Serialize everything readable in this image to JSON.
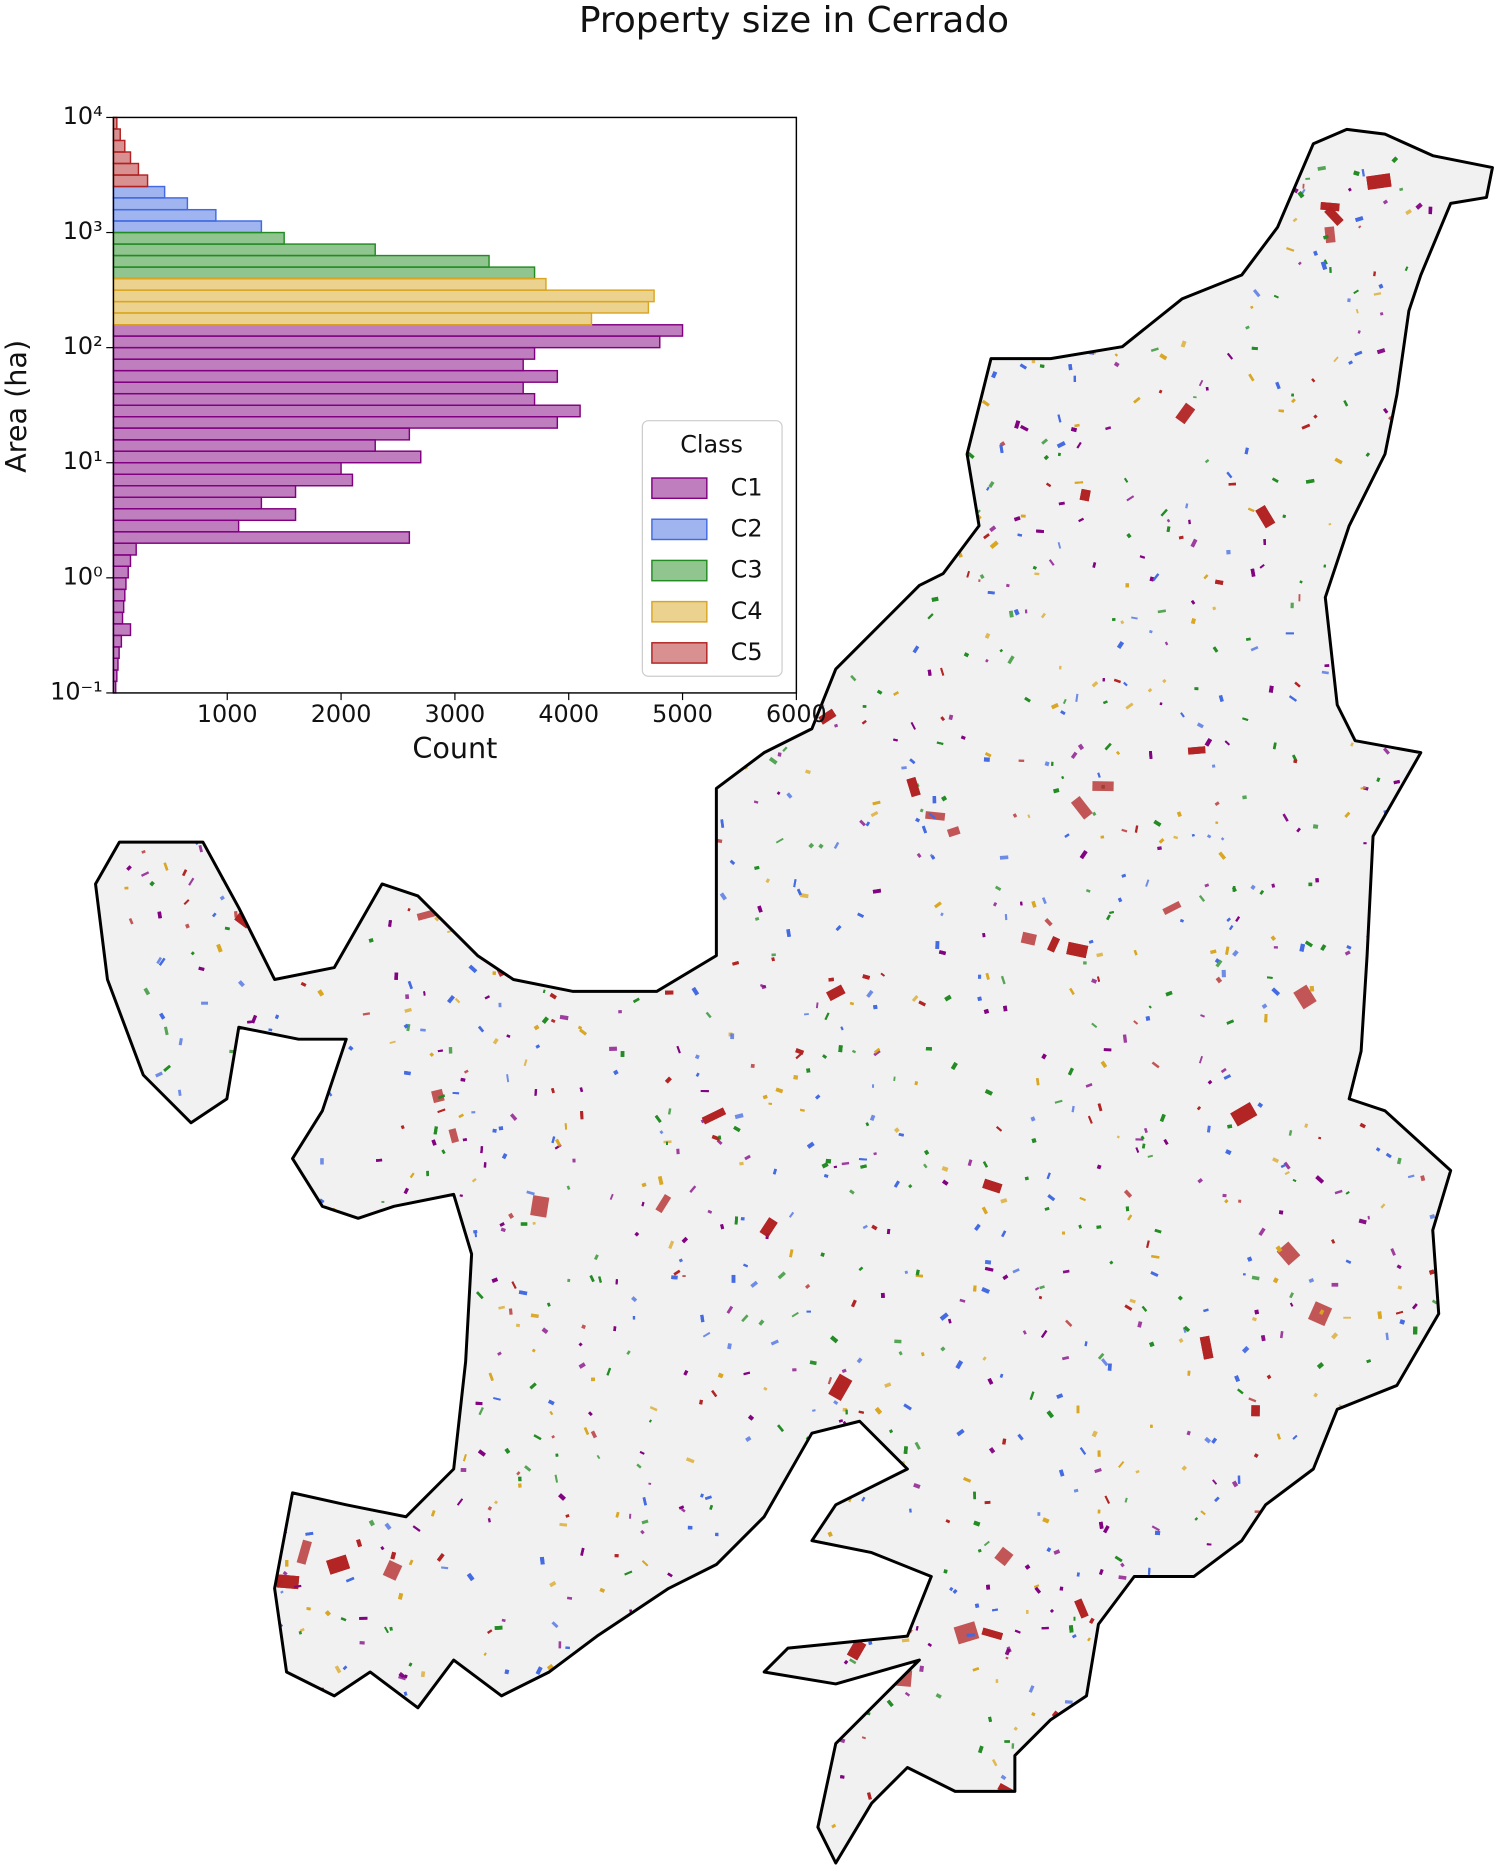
{
  "chart_data": {
    "type": "histogram",
    "orientation": "horizontal",
    "title": "Property size in Cerrado",
    "x_label": "Count",
    "y_label": "Area (ha)",
    "xlim": [
      0,
      6000
    ],
    "xticks": [
      1000,
      2000,
      3000,
      4000,
      5000,
      6000
    ],
    "ylim": [
      0.1,
      10000
    ],
    "log_y": true,
    "yticks": [
      {
        "value": 0.1,
        "label": "10⁻¹"
      },
      {
        "value": 1,
        "label": "10⁰"
      },
      {
        "value": 10,
        "label": "10¹"
      },
      {
        "value": 100,
        "label": "10²"
      },
      {
        "value": 1000,
        "label": "10³"
      },
      {
        "value": 10000,
        "label": "10⁴"
      }
    ],
    "legend_title": "Class",
    "legend_position": "right",
    "series": [
      {
        "name": "C1",
        "color": "#800080",
        "bins": [
          0.1,
          0.126,
          0.158,
          0.2,
          0.251,
          0.316,
          0.398,
          0.501,
          0.631,
          0.794,
          1,
          1.26,
          1.58,
          2,
          2.51,
          3.16,
          3.98,
          5.01,
          6.31,
          7.94,
          10,
          12.6,
          15.8,
          20,
          25.1,
          31.6,
          39.8,
          50.1,
          63.1,
          79.4,
          100,
          126,
          158
        ],
        "values": [
          20,
          30,
          40,
          50,
          70,
          150,
          80,
          90,
          100,
          110,
          130,
          150,
          200,
          2600,
          1100,
          1600,
          1300,
          1600,
          2100,
          2000,
          2700,
          2300,
          2600,
          3900,
          4100,
          3700,
          3600,
          3900,
          3600,
          3700,
          4800,
          5000
        ]
      },
      {
        "name": "C2",
        "color": "#4169e1",
        "bins": [
          1000,
          1260,
          1580,
          2000,
          2510
        ],
        "values": [
          1300,
          900,
          650,
          450
        ]
      },
      {
        "name": "C3",
        "color": "#228b22",
        "bins": [
          398,
          501,
          631,
          794,
          1000
        ],
        "values": [
          3700,
          3300,
          2300,
          1500
        ]
      },
      {
        "name": "C4",
        "color": "#daa520",
        "bins": [
          158,
          200,
          251,
          316,
          398
        ],
        "values": [
          4200,
          4700,
          4750,
          3800
        ]
      },
      {
        "name": "C5",
        "color": "#b22222",
        "bins": [
          2510,
          3160,
          3980,
          5010,
          6310,
          7940,
          10000
        ],
        "values": [
          300,
          220,
          150,
          100,
          60,
          30
        ]
      }
    ]
  }
}
